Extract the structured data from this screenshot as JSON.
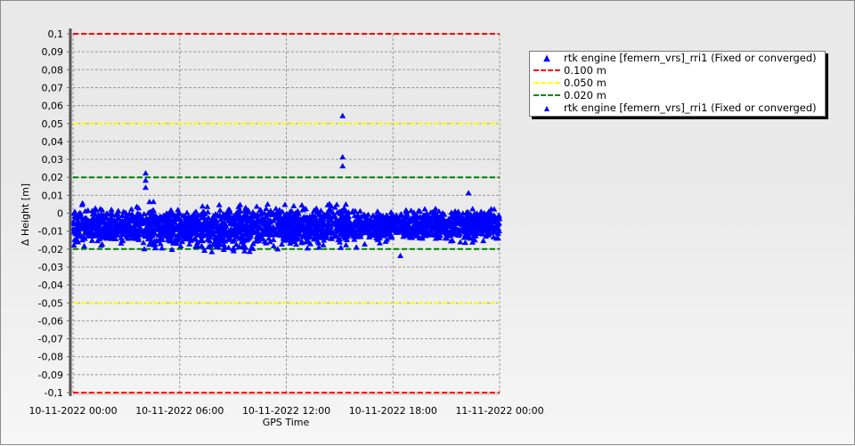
{
  "chart_data": {
    "type": "scatter",
    "xlabel": "GPS Time",
    "ylabel": "Δ Height [m]",
    "xlim": [
      "10-11-2022 00:00",
      "11-11-2022 00:00"
    ],
    "ylim": [
      -0.1,
      0.1
    ],
    "x_ticks": [
      "10-11-2022 00:00",
      "10-11-2022 06:00",
      "10-11-2022 12:00",
      "10-11-2022 18:00",
      "11-11-2022 00:00"
    ],
    "y_ticks": [
      "0,1",
      "0,09",
      "0,08",
      "0,07",
      "0,06",
      "0,05",
      "0,04",
      "0,03",
      "0,02",
      "0,01",
      "0",
      "-0,01",
      "-0,02",
      "-0,03",
      "-0,04",
      "-0,05",
      "-0,06",
      "-0,07",
      "-0,08",
      "-0,09",
      "-0,1"
    ],
    "grid": true,
    "legend_position": "right",
    "legend": [
      {
        "label": "rtk engine [femern_vrs]_rri1 (Fixed or converged)",
        "kind": "marker-large",
        "color": "#0000ff"
      },
      {
        "label": "0.100 m",
        "kind": "dashed",
        "color": "#ff0000"
      },
      {
        "label": "0.050 m",
        "kind": "dashed",
        "color": "#ffff00"
      },
      {
        "label": "0.020 m",
        "kind": "dashed",
        "color": "#008000"
      },
      {
        "label": "rtk engine [femern_vrs]_rri1 (Fixed or converged)",
        "kind": "marker",
        "color": "#0000ff"
      }
    ],
    "threshold_lines": [
      {
        "value": 0.1,
        "color": "#ff0000"
      },
      {
        "value": -0.1,
        "color": "#ff0000"
      },
      {
        "value": 0.05,
        "color": "#ffff00"
      },
      {
        "value": -0.05,
        "color": "#ffff00"
      },
      {
        "value": 0.02,
        "color": "#008000"
      },
      {
        "value": -0.02,
        "color": "#008000"
      }
    ],
    "series": [
      {
        "marker": "triangle",
        "color": "#0000ff",
        "band_hourly": {
          "hours": [
            0,
            1,
            2,
            3,
            4,
            5,
            6,
            7,
            8,
            9,
            10,
            11,
            12,
            13,
            14,
            15,
            16,
            17,
            18,
            19,
            20,
            21,
            22,
            23,
            24
          ],
          "upper": [
            0.005,
            0.004,
            0.004,
            0.004,
            0.006,
            0.006,
            0.005,
            0.004,
            0.004,
            0.006,
            0.006,
            0.006,
            0.006,
            0.006,
            0.005,
            0.005,
            0.004,
            0.002,
            0.002,
            0.002,
            0.003,
            0.003,
            0.003,
            0.003,
            0.003
          ],
          "lower": [
            -0.019,
            -0.019,
            -0.019,
            -0.019,
            -0.02,
            -0.021,
            -0.021,
            -0.022,
            -0.022,
            -0.022,
            -0.022,
            -0.022,
            -0.021,
            -0.021,
            -0.021,
            -0.019,
            -0.019,
            -0.018,
            -0.016,
            -0.016,
            -0.016,
            -0.017,
            -0.017,
            -0.016,
            -0.016
          ]
        },
        "notable_points": [
          {
            "x": "10-11-2022 04:05",
            "y": 0.022
          },
          {
            "x": "10-11-2022 04:05",
            "y": 0.018
          },
          {
            "x": "10-11-2022 04:05",
            "y": 0.014
          },
          {
            "x": "10-11-2022 15:10",
            "y": 0.054
          },
          {
            "x": "10-11-2022 15:10",
            "y": 0.031
          },
          {
            "x": "10-11-2022 15:10",
            "y": 0.026
          },
          {
            "x": "10-11-2022 18:25",
            "y": -0.024
          },
          {
            "x": "10-11-2022 22:15",
            "y": 0.011
          }
        ]
      }
    ]
  }
}
